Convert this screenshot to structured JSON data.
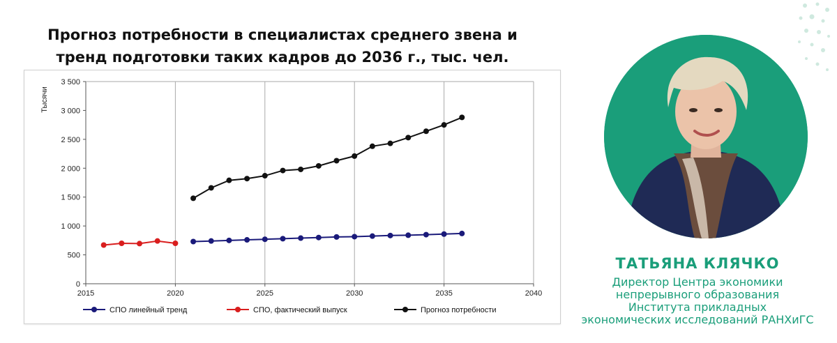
{
  "title_lines": [
    "Прогноз потребности в специалистах среднего звена и",
    "тренд подготовки таких кадров до 2036 г., тыс. чел."
  ],
  "chart_data": {
    "type": "line",
    "title": "Прогноз потребности в специалистах среднего звена и тренд подготовки таких кадров до 2036 г., тыс. чел.",
    "ylabel": "Тысячи",
    "xlabel": "",
    "xlim": [
      2015,
      2040
    ],
    "ylim": [
      0,
      3500
    ],
    "x_ticks": [
      2015,
      2020,
      2025,
      2030,
      2035,
      2040
    ],
    "x_tick_labels": [
      "2015",
      "2020",
      "2025",
      "2030",
      "2035",
      "2040"
    ],
    "y_ticks": [
      0,
      500,
      1000,
      1500,
      2000,
      2500,
      3000,
      3500
    ],
    "y_tick_labels": [
      "0",
      "500",
      "1 000",
      "1 500",
      "2 000",
      "2 500",
      "3 000",
      "3 500"
    ],
    "grid": "vertical",
    "legend_position": "bottom",
    "series": [
      {
        "name": "СПО линейный тренд",
        "color": "#1a1a7a",
        "x": [
          2021,
          2022,
          2023,
          2024,
          2025,
          2026,
          2027,
          2028,
          2029,
          2030,
          2031,
          2032,
          2033,
          2034,
          2035,
          2036
        ],
        "y": [
          730,
          740,
          750,
          760,
          770,
          780,
          790,
          800,
          810,
          815,
          825,
          835,
          840,
          850,
          860,
          870
        ]
      },
      {
        "name": "СПО, фактический выпуск",
        "color": "#d91e1e",
        "x": [
          2016,
          2017,
          2018,
          2019,
          2020
        ],
        "y": [
          670,
          700,
          695,
          740,
          700
        ]
      },
      {
        "name": "Прогноз потребности",
        "color": "#111111",
        "x": [
          2021,
          2022,
          2023,
          2024,
          2025,
          2026,
          2027,
          2028,
          2029,
          2030,
          2031,
          2032,
          2033,
          2034,
          2035,
          2036
        ],
        "y": [
          1480,
          1660,
          1790,
          1820,
          1870,
          1960,
          1980,
          2040,
          2130,
          2210,
          2380,
          2430,
          2530,
          2640,
          2750,
          2880
        ]
      }
    ]
  },
  "person": {
    "name": "ТАТЬЯНА КЛЯЧКО",
    "role_lines": [
      "Директор Центра экономики",
      "непрерывного образования",
      "Института прикладных",
      "экономических исследований РАНХиГС"
    ]
  },
  "colors": {
    "accent": "#1a9e7a",
    "decor_dots": "#cfe9df"
  }
}
